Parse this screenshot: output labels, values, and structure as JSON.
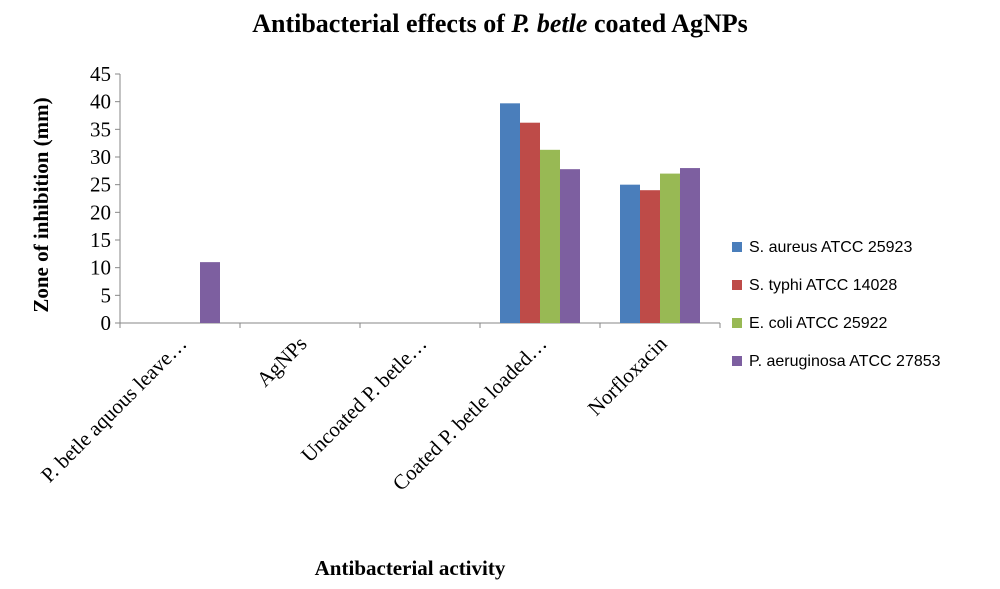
{
  "chart_data": {
    "type": "bar",
    "title": {
      "prefix": "Antibacterial effects of ",
      "emphasis": "P. betle",
      "suffix": " coated AgNPs"
    },
    "xlabel": "Antibacterial activity",
    "ylabel": "Zone of inhibition  (mm)",
    "ylim": [
      0,
      45
    ],
    "ytick_step": 5,
    "grid": false,
    "legend_position": "right",
    "categories": [
      "P. betle aquous leave…",
      "AgNPs",
      "Uncoated P. betle…",
      "Coated P. betle loaded…",
      "Norfloxacin"
    ],
    "series": [
      {
        "name": "S. aureus ATCC 25923",
        "color": "#4a7ebb",
        "values": [
          0,
          0,
          0,
          39.7,
          25
        ]
      },
      {
        "name": "S. typhi ATCC 14028",
        "color": "#be4b48",
        "values": [
          0,
          0,
          0,
          36.2,
          24
        ]
      },
      {
        "name": "E. coli ATCC 25922",
        "color": "#98b954",
        "values": [
          0,
          0,
          0,
          31.3,
          27
        ]
      },
      {
        "name": "P. aeruginosa ATCC 27853",
        "color": "#7d5fa0",
        "values": [
          11,
          0,
          0,
          27.8,
          28
        ]
      }
    ]
  }
}
